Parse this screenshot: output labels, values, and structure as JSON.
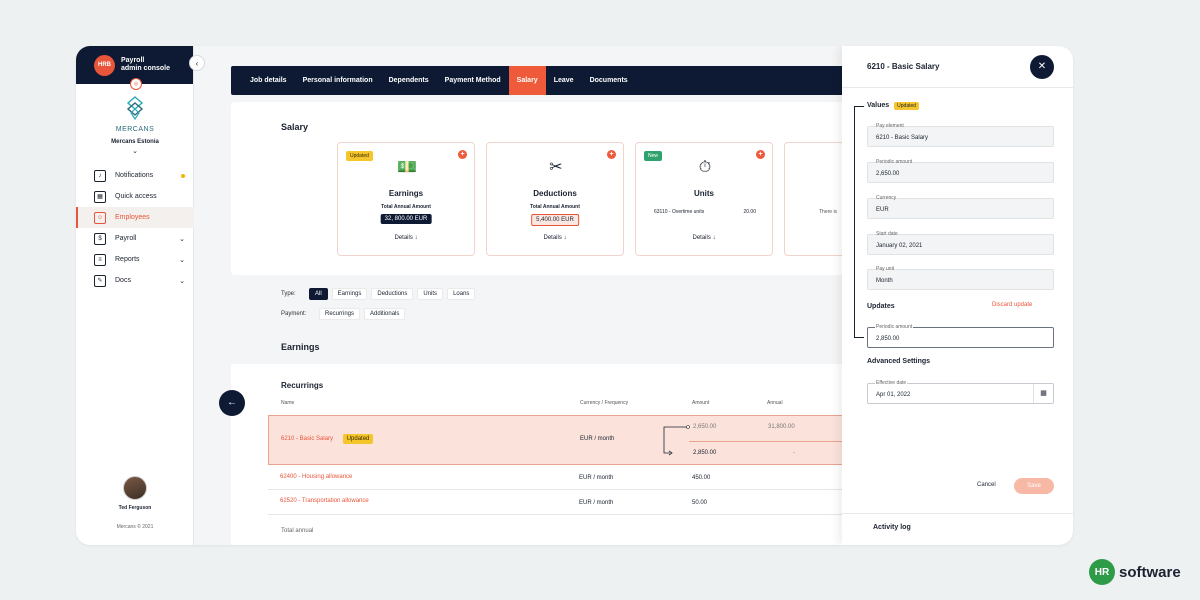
{
  "sidebar": {
    "logo_text": "HRB",
    "title_line1": "Payroll",
    "title_line2": "admin console",
    "collapse_glyph": "‹",
    "company_name": "MERCANS",
    "company_label": "Mercans Estonia",
    "items": [
      {
        "label": "Notifications",
        "icon": "bell-icon"
      },
      {
        "label": "Quick access",
        "icon": "grid-icon"
      },
      {
        "label": "Employees",
        "icon": "people-icon"
      },
      {
        "label": "Payroll",
        "icon": "payroll-icon"
      },
      {
        "label": "Reports",
        "icon": "report-icon"
      },
      {
        "label": "Docs",
        "icon": "docs-icon"
      }
    ],
    "user_name": "Ted Ferguson",
    "copyright": "Mercans © 2021"
  },
  "tabs": [
    "Job details",
    "Personal information",
    "Dependents",
    "Payment Method",
    "Salary",
    "Leave",
    "Documents"
  ],
  "salary": {
    "title": "Salary",
    "cards": [
      {
        "badge": "Updated",
        "title": "Earnings",
        "sub": "Total Annual Amount",
        "amount": "32, 800.00 EUR",
        "details": "Details"
      },
      {
        "badge": "",
        "title": "Deductions",
        "sub": "Total Annual Amount",
        "amount": "5,400.00 EUR",
        "details": "Details"
      },
      {
        "badge": "New",
        "title": "Units",
        "unit_name": "63110 - Overtime units",
        "unit_value": "20.00",
        "details": "Details"
      },
      {
        "partial_text": "There is"
      }
    ]
  },
  "filters": {
    "type_label": "Type:",
    "types": [
      "All",
      "Earnings",
      "Deductions",
      "Units",
      "Loans"
    ],
    "payment_label": "Payment:",
    "payments": [
      "Recurrings",
      "Additionals"
    ]
  },
  "earnings": {
    "title": "Earnings",
    "table_title": "Recurrings",
    "headers": [
      "Name",
      "Currency / Frequency",
      "Amount",
      "Annual"
    ],
    "rows": [
      {
        "name": "6210 - Basic Salary",
        "badge": "Updated",
        "currency": "EUR / month",
        "old_amount": "2,650.00",
        "old_annual": "31,800.00",
        "new_amount": "2,850.00",
        "new_annual": "-"
      },
      {
        "name": "62400 - Housing allowance",
        "currency": "EUR / month",
        "amount": "450.00"
      },
      {
        "name": "62520 - Transportation allowance",
        "currency": "EUR / month",
        "amount": "50.00"
      }
    ],
    "total_label": "Total annual"
  },
  "drawer": {
    "title": "6210 - Basic Salary",
    "values_label": "Values",
    "values_badge": "Updated",
    "fields": [
      {
        "label": "Pay element",
        "value": "6210 - Basic Salary"
      },
      {
        "label": "Periodic amount",
        "value": "2,650.00"
      },
      {
        "label": "Currency",
        "value": "EUR"
      },
      {
        "label": "Start date",
        "value": "January 02, 2021"
      },
      {
        "label": "Pay unit",
        "value": "Month"
      }
    ],
    "updates_label": "Updates",
    "discard_label": "Discard update",
    "update_field": {
      "label": "Periodic amount",
      "value": "2,850.00"
    },
    "advanced_label": "Advanced Settings",
    "effective_field": {
      "label": "Effective date",
      "value": "Apr 01, 2022"
    },
    "cancel_label": "Cancel",
    "save_label": "Save",
    "activity_label": "Activity log"
  },
  "brand": {
    "logo_text": "HR",
    "text": "software"
  }
}
